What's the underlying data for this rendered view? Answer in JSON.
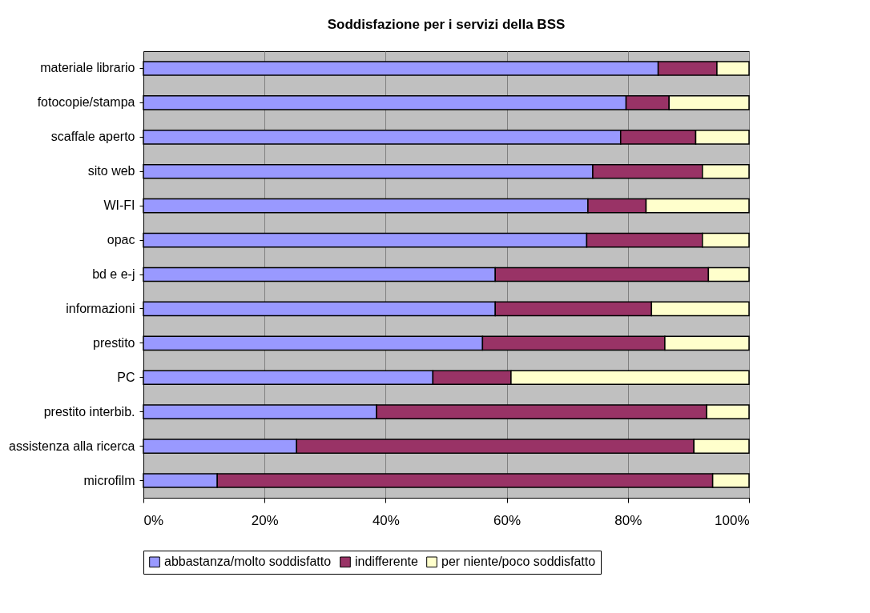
{
  "chart_data": {
    "type": "bar",
    "orientation": "horizontal",
    "stacked": true,
    "title": "Soddisfazione per i servizi della BSS",
    "categories": [
      "materiale librario",
      "fotocopie/stampa",
      "scaffale aperto",
      "sito web",
      "WI-FI",
      "opac",
      "bd e e-j",
      "informazioni",
      "prestito",
      "PC",
      "prestito interbib.",
      "assistenza alla ricerca",
      "microfilm"
    ],
    "series": [
      {
        "name": "abbastanza/molto soddisfatto",
        "color": "#9999ff",
        "values": [
          85.0,
          79.7,
          78.8,
          74.2,
          73.4,
          73.2,
          58.1,
          58.1,
          56.0,
          47.8,
          38.5,
          25.3,
          12.2
        ]
      },
      {
        "name": "indifferente",
        "color": "#993366",
        "values": [
          9.7,
          7.1,
          12.4,
          18.1,
          9.6,
          19.1,
          35.2,
          25.8,
          30.1,
          12.9,
          54.5,
          65.6,
          81.8
        ]
      },
      {
        "name": "per niente/poco soddisfatto",
        "color": "#ffffcc",
        "values": [
          5.3,
          13.2,
          8.8,
          7.7,
          17.0,
          7.7,
          6.7,
          16.1,
          13.9,
          39.3,
          7.0,
          9.1,
          6.0
        ]
      }
    ],
    "xlim": [
      0,
      100
    ],
    "xticks": [
      {
        "value": 0,
        "label": "0%"
      },
      {
        "value": 20,
        "label": "20%"
      },
      {
        "value": 40,
        "label": "40%"
      },
      {
        "value": 60,
        "label": "60%"
      },
      {
        "value": 80,
        "label": "80%"
      },
      {
        "value": 100,
        "label": "100%"
      }
    ],
    "grid": "x",
    "legend": "bottom"
  }
}
